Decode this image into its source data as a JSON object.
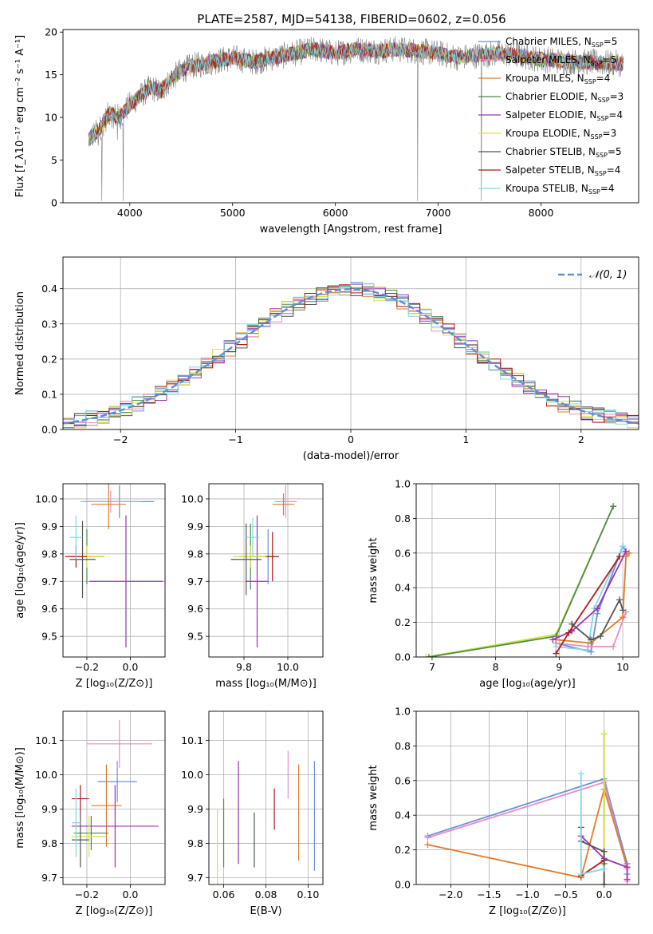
{
  "figure": {
    "title": "PLATE=2587, MJD=54138, FIBERID=0602, z=0.056"
  },
  "chart_data": [
    {
      "id": "spectrum",
      "type": "line",
      "xlabel": "wavelength [Angstrom, rest frame]",
      "ylabel": "Flux [f_λ10⁻¹⁷ erg cm⁻² s⁻¹ A⁻¹]",
      "xlim": [
        3350,
        8950
      ],
      "ylim": [
        0,
        20.3
      ],
      "xticks": [
        4000,
        5000,
        6000,
        7000,
        8000
      ],
      "yticks": [
        0,
        5,
        10,
        15,
        20
      ],
      "grid": false,
      "legend_position": "top-right",
      "continuum": {
        "x": [
          3600,
          3700,
          3800,
          3900,
          4000,
          4100,
          4200,
          4300,
          4400,
          4500,
          4600,
          4800,
          5000,
          5200,
          5400,
          5600,
          5800,
          6000,
          6200,
          6400,
          6600,
          6800,
          7000,
          7200,
          7400,
          7600,
          7800,
          8000,
          8200,
          8400,
          8600,
          8800
        ],
        "y": [
          7.5,
          8.5,
          10.5,
          10.0,
          11.5,
          12.5,
          13.5,
          13.0,
          14.5,
          15.5,
          16.0,
          16.5,
          17.0,
          16.5,
          17.0,
          17.5,
          18.0,
          17.5,
          18.0,
          17.8,
          18.0,
          17.8,
          17.5,
          17.0,
          17.3,
          17.5,
          17.2,
          16.8,
          16.6,
          16.5,
          16.4,
          16.3
        ]
      },
      "spikes": [
        {
          "x": 3727,
          "y": 0.2
        },
        {
          "x": 3935,
          "y": 0.2
        },
        {
          "x": 6800,
          "y": 0.2
        },
        {
          "x": 7420,
          "y": 0.2
        }
      ],
      "series": [
        {
          "name": "Chabrier MILES, N<sub>SSP</sub>=5",
          "label_main": "Chabrier MILES, N",
          "label_sub": "SSP",
          "label_tail": "=5",
          "color": "#6a8fd8"
        },
        {
          "name": "Salpeter MILES, N<sub>SSP</sub>=5",
          "label_main": "Salpeter MILES, N",
          "label_sub": "SSP",
          "label_tail": "=5",
          "color": "#e98cc6"
        },
        {
          "name": "Kroupa MILES, N<sub>SSP</sub>=4",
          "label_main": "Kroupa MILES, N",
          "label_sub": "SSP",
          "label_tail": "=4",
          "color": "#e07b2a"
        },
        {
          "name": "Chabrier ELODIE, N<sub>SSP</sub>=3",
          "label_main": "Chabrier ELODIE, N",
          "label_sub": "SSP",
          "label_tail": "=3",
          "color": "#4c8a4c"
        },
        {
          "name": "Salpeter ELODIE, N<sub>SSP</sub>=4",
          "label_main": "Salpeter ELODIE, N",
          "label_sub": "SSP",
          "label_tail": "=4",
          "color": "#9a32b8"
        },
        {
          "name": "Kroupa ELODIE, N<sub>SSP</sub>=3",
          "label_main": "Kroupa ELODIE, N",
          "label_sub": "SSP",
          "label_tail": "=3",
          "color": "#d9e04a"
        },
        {
          "name": "Chabrier STELIB, N<sub>SSP</sub>=5",
          "label_main": "Chabrier STELIB, N",
          "label_sub": "SSP",
          "label_tail": "=5",
          "color": "#555555"
        },
        {
          "name": "Salpeter STELIB, N<sub>SSP</sub>=4",
          "label_main": "Salpeter STELIB, N",
          "label_sub": "SSP",
          "label_tail": "=4",
          "color": "#b01818"
        },
        {
          "name": "Kroupa STELIB, N<sub>SSP</sub>=4",
          "label_main": "Kroupa STELIB, N",
          "label_sub": "SSP",
          "label_tail": "=4",
          "color": "#7fd8e6"
        }
      ],
      "data_color": "#808080"
    },
    {
      "id": "residuals",
      "type": "area",
      "xlabel": "(data-model)/error",
      "ylabel": "Normed distribution",
      "xlim": [
        -2.5,
        2.5
      ],
      "ylim": [
        0,
        0.49
      ],
      "xticks": [
        -2,
        -1,
        0,
        1,
        2
      ],
      "xtick_labels": [
        "−2",
        "−1",
        "0",
        "1",
        "2"
      ],
      "yticks": [
        0.0,
        0.1,
        0.2,
        0.3,
        0.4
      ],
      "ytick_labels": [
        "0.0",
        "0.1",
        "0.2",
        "0.3",
        "0.4"
      ],
      "grid": true,
      "legend_position": "top-right",
      "bin_width": 0.1,
      "gaussian": {
        "name": "𝒩(0, 1)",
        "mean": 0,
        "sigma": 1,
        "color": "#5b8fd6"
      }
    },
    {
      "id": "z-age",
      "type": "scatter",
      "xlabel": "Z [log₁₀(Z/Z⊙)]",
      "ylabel": "age  [log₁₀(age/yr)]",
      "xlim": [
        -0.31,
        0.16
      ],
      "ylim": [
        9.425,
        10.055
      ],
      "xticks": [
        -0.2,
        0.0
      ],
      "xtick_labels": [
        "−0.2",
        "0.0"
      ],
      "yticks": [
        9.5,
        9.6,
        9.7,
        9.8,
        9.9,
        10.0
      ],
      "ytick_labels": [
        "9.5",
        "9.6",
        "9.7",
        "9.8",
        "9.9",
        "10.0"
      ],
      "grid": true,
      "points": [
        {
          "x": -0.05,
          "y": 9.99,
          "xerr": 0.16,
          "yerr": 0.06,
          "color": "#6a8fd8"
        },
        {
          "x": -0.09,
          "y": 9.99,
          "xerr": 0.14,
          "yerr": 0.04,
          "color": "#e98cc6"
        },
        {
          "x": -0.1,
          "y": 9.98,
          "xerr": 0.08,
          "yerr": 0.09,
          "color": "#e07b2a"
        },
        {
          "x": -0.2,
          "y": 9.79,
          "xerr": 0.08,
          "yerr": 0.1,
          "color": "#4c8a4c"
        },
        {
          "x": -0.02,
          "y": 9.7,
          "xerr": 0.17,
          "yerr": 0.24,
          "color": "#9a32b8"
        },
        {
          "x": -0.2,
          "y": 9.79,
          "xerr": 0.08,
          "yerr": 0.04,
          "color": "#d9e04a"
        },
        {
          "x": -0.22,
          "y": 9.78,
          "xerr": 0.06,
          "yerr": 0.14,
          "color": "#555555"
        },
        {
          "x": -0.25,
          "y": 9.79,
          "xerr": 0.05,
          "yerr": 0.04,
          "color": "#b01818"
        },
        {
          "x": -0.25,
          "y": 9.86,
          "xerr": 0.03,
          "yerr": 0.08,
          "color": "#7fd8e6"
        }
      ]
    },
    {
      "id": "mass-age",
      "type": "scatter",
      "xlabel": "mass [log₁₀(M/M⊙)]",
      "ylabel": "",
      "xlim": [
        9.64,
        10.16
      ],
      "ylim": [
        9.425,
        10.055
      ],
      "xticks": [
        9.8,
        10.0
      ],
      "xtick_labels": [
        "9.8",
        "10.0"
      ],
      "yticks": [
        9.5,
        9.6,
        9.7,
        9.8,
        9.9,
        10.0
      ],
      "ytick_labels": [
        "9.5",
        "9.6",
        "9.7",
        "9.8",
        "9.9",
        "10.0"
      ],
      "grid": true,
      "points": [
        {
          "x": 9.99,
          "y": 9.99,
          "xerr": 0.05,
          "yerr": 0.06,
          "color": "#e98cc6"
        },
        {
          "x": 9.98,
          "y": 9.98,
          "xerr": 0.05,
          "yerr": 0.04,
          "color": "#e07b2a"
        },
        {
          "x": 9.91,
          "y": 9.79,
          "xerr": 0.03,
          "yerr": 0.1,
          "color": "#6a8fd8"
        },
        {
          "x": 9.83,
          "y": 9.79,
          "xerr": 0.05,
          "yerr": 0.12,
          "color": "#4c8a4c"
        },
        {
          "x": 9.86,
          "y": 9.7,
          "xerr": 0.05,
          "yerr": 0.24,
          "color": "#9a32b8"
        },
        {
          "x": 9.83,
          "y": 9.79,
          "xerr": 0.08,
          "yerr": 0.04,
          "color": "#d9e04a"
        },
        {
          "x": 9.81,
          "y": 9.78,
          "xerr": 0.07,
          "yerr": 0.13,
          "color": "#555555"
        },
        {
          "x": 9.93,
          "y": 9.79,
          "xerr": 0.03,
          "yerr": 0.09,
          "color": "#b01818"
        },
        {
          "x": 9.84,
          "y": 9.86,
          "xerr": 0.03,
          "yerr": 0.07,
          "color": "#7fd8e6"
        }
      ]
    },
    {
      "id": "age-weight",
      "type": "line",
      "xlabel": "age  [log₁₀(age/yr)]",
      "ylabel": "mass weight",
      "xlim": [
        6.75,
        10.25
      ],
      "ylim": [
        0,
        1.0
      ],
      "xticks": [
        7,
        8,
        9,
        10
      ],
      "yticks": [
        0.0,
        0.2,
        0.4,
        0.6,
        0.8,
        1.0
      ],
      "ytick_labels": [
        "0.0",
        "0.2",
        "0.4",
        "0.6",
        "0.8",
        "1.0"
      ],
      "grid": true,
      "series": [
        {
          "color": "#d9e04a",
          "x": [
            6.9,
            8.95,
            9.85
          ],
          "y": [
            0.0,
            0.13,
            0.87
          ]
        },
        {
          "color": "#4c8a4c",
          "x": [
            6.95,
            8.95,
            9.85
          ],
          "y": [
            0.0,
            0.12,
            0.87
          ]
        },
        {
          "color": "#6a8fd8",
          "x": [
            8.95,
            9.5,
            9.6,
            10.0,
            10.05
          ],
          "y": [
            0.08,
            0.03,
            0.25,
            0.64,
            0.61
          ]
        },
        {
          "color": "#7fd8e6",
          "x": [
            8.95,
            9.45,
            9.55,
            10.0
          ],
          "y": [
            0.06,
            0.04,
            0.28,
            0.64
          ]
        },
        {
          "color": "#e98cc6",
          "x": [
            8.95,
            9.45,
            9.85,
            10.05
          ],
          "y": [
            0.08,
            0.06,
            0.06,
            0.26
          ]
        },
        {
          "color": "#e07b2a",
          "x": [
            8.95,
            9.5,
            10.0,
            10.05,
            10.1
          ],
          "y": [
            0.1,
            0.08,
            0.23,
            0.58,
            0.6
          ]
        },
        {
          "color": "#9a32b8",
          "x": [
            8.9,
            9.2,
            9.6,
            10.05
          ],
          "y": [
            0.1,
            0.15,
            0.28,
            0.61
          ]
        },
        {
          "color": "#b01818",
          "x": [
            8.95,
            9.15,
            9.95
          ],
          "y": [
            0.02,
            0.14,
            0.58
          ]
        },
        {
          "color": "#555555",
          "x": [
            9.2,
            9.5,
            9.65,
            9.95,
            10.0
          ],
          "y": [
            0.19,
            0.1,
            0.12,
            0.33,
            0.27
          ]
        }
      ]
    },
    {
      "id": "z-mass",
      "type": "scatter",
      "xlabel": "Z [log₁₀(Z/Z⊙)]",
      "ylabel": "mass [log₁₀(M/M⊙)]",
      "xlim": [
        -0.31,
        0.16
      ],
      "ylim": [
        9.68,
        10.185
      ],
      "xticks": [
        -0.2,
        0.0
      ],
      "xtick_labels": [
        "−0.2",
        "0.0"
      ],
      "yticks": [
        9.7,
        9.8,
        9.9,
        10.0,
        10.1
      ],
      "ytick_labels": [
        "9.7",
        "9.8",
        "9.9",
        "10.0",
        "10.1"
      ],
      "grid": true,
      "points": [
        {
          "x": -0.05,
          "y": 10.09,
          "xerr": 0.15,
          "yerr": 0.07,
          "color": "#e98cc6"
        },
        {
          "x": -0.06,
          "y": 9.98,
          "xerr": 0.09,
          "yerr": 0.06,
          "color": "#6a8fd8"
        },
        {
          "x": -0.11,
          "y": 9.91,
          "xerr": 0.07,
          "yerr": 0.12,
          "color": "#e07b2a"
        },
        {
          "x": -0.07,
          "y": 9.85,
          "xerr": 0.2,
          "yerr": 0.12,
          "color": "#9a32b8"
        },
        {
          "x": -0.18,
          "y": 9.83,
          "xerr": 0.08,
          "yerr": 0.05,
          "color": "#4c8a4c"
        },
        {
          "x": -0.19,
          "y": 9.82,
          "xerr": 0.08,
          "yerr": 0.06,
          "color": "#d9e04a"
        },
        {
          "x": -0.23,
          "y": 9.81,
          "xerr": 0.04,
          "yerr": 0.08,
          "color": "#555555"
        },
        {
          "x": -0.23,
          "y": 9.93,
          "xerr": 0.04,
          "yerr": 0.04,
          "color": "#b01818"
        },
        {
          "x": -0.25,
          "y": 9.86,
          "xerr": 0.02,
          "yerr": 0.1,
          "color": "#7fd8e6"
        }
      ]
    },
    {
      "id": "ebv-mass",
      "type": "scatter",
      "xlabel": "E(B-V)",
      "ylabel": "",
      "xlim": [
        0.053,
        0.107
      ],
      "ylim": [
        9.68,
        10.185
      ],
      "xticks": [
        0.06,
        0.08,
        0.1
      ],
      "xtick_labels": [
        "0.06",
        "0.08",
        "0.10"
      ],
      "yticks": [
        9.7,
        9.8,
        9.9,
        10.0,
        10.1
      ],
      "ytick_labels": [
        "9.7",
        "9.8",
        "9.9",
        "10.0",
        "10.1"
      ],
      "grid": true,
      "points": [
        {
          "x": 0.057,
          "y": 9.79,
          "xerr": 0,
          "yerr": 0.11,
          "color": "#d9e04a"
        },
        {
          "x": 0.06,
          "y": 9.83,
          "xerr": 0,
          "yerr": 0.1,
          "color": "#4c8a4c"
        },
        {
          "x": 0.067,
          "y": 9.89,
          "xerr": 0,
          "yerr": 0.15,
          "color": "#9a32b8"
        },
        {
          "x": 0.0745,
          "y": 9.81,
          "xerr": 0,
          "yerr": 0.08,
          "color": "#555555"
        },
        {
          "x": 0.084,
          "y": 9.9,
          "xerr": 0,
          "yerr": 0.06,
          "color": "#b01818"
        },
        {
          "x": 0.0905,
          "y": 10.0,
          "xerr": 0,
          "yerr": 0.07,
          "color": "#e98cc6"
        },
        {
          "x": 0.0955,
          "y": 9.89,
          "xerr": 0,
          "yerr": 0.14,
          "color": "#e07b2a"
        },
        {
          "x": 0.103,
          "y": 9.88,
          "xerr": 0,
          "yerr": 0.16,
          "color": "#6a8fd8"
        }
      ]
    },
    {
      "id": "z-weight",
      "type": "line",
      "xlabel": "Z [log₁₀(Z/Z⊙)]",
      "ylabel": "mass weight",
      "xlim": [
        -2.45,
        0.45
      ],
      "ylim": [
        0,
        1.0
      ],
      "xticks": [
        -2.0,
        -1.5,
        -1.0,
        -0.5,
        0.0
      ],
      "xtick_labels": [
        "−2.0",
        "−1.5",
        "−1.0",
        "−0.5",
        "0.0"
      ],
      "yticks": [
        0.0,
        0.2,
        0.4,
        0.6,
        0.8,
        1.0
      ],
      "ytick_labels": [
        "0.0",
        "0.2",
        "0.4",
        "0.6",
        "0.8",
        "1.0"
      ],
      "grid": true,
      "series": [
        {
          "color": "#6a8fd8",
          "x": [
            -2.3,
            0.0,
            0.3,
            0.3
          ],
          "y": [
            0.28,
            0.61,
            0.12,
            0.06
          ]
        },
        {
          "color": "#e98cc6",
          "x": [
            -2.3,
            0.0,
            0.3,
            0.3
          ],
          "y": [
            0.27,
            0.59,
            0.09,
            0.02
          ]
        },
        {
          "color": "#e07b2a",
          "x": [
            -2.3,
            -0.3,
            0.0,
            0.3
          ],
          "y": [
            0.23,
            0.04,
            0.55,
            0.1
          ]
        },
        {
          "color": "#4c8a4c",
          "x": [
            0.0,
            0.0
          ],
          "y": [
            0.87,
            0.12
          ]
        },
        {
          "color": "#d9e04a",
          "x": [
            0.0,
            0.0
          ],
          "y": [
            0.87,
            0.0
          ]
        },
        {
          "color": "#9a32b8",
          "x": [
            -0.3,
            0.0,
            0.3,
            0.3
          ],
          "y": [
            0.28,
            0.15,
            0.1,
            0.03
          ]
        },
        {
          "color": "#b01818",
          "x": [
            -0.3,
            0.0,
            0.0
          ],
          "y": [
            0.05,
            0.14,
            0.0
          ]
        },
        {
          "color": "#555555",
          "x": [
            -0.3,
            -0.3,
            0.0,
            0.0
          ],
          "y": [
            0.33,
            0.25,
            0.19,
            0.0
          ]
        },
        {
          "color": "#7fd8e6",
          "x": [
            -0.3,
            -0.3,
            0.0
          ],
          "y": [
            0.64,
            0.06,
            0.09
          ]
        }
      ]
    }
  ]
}
